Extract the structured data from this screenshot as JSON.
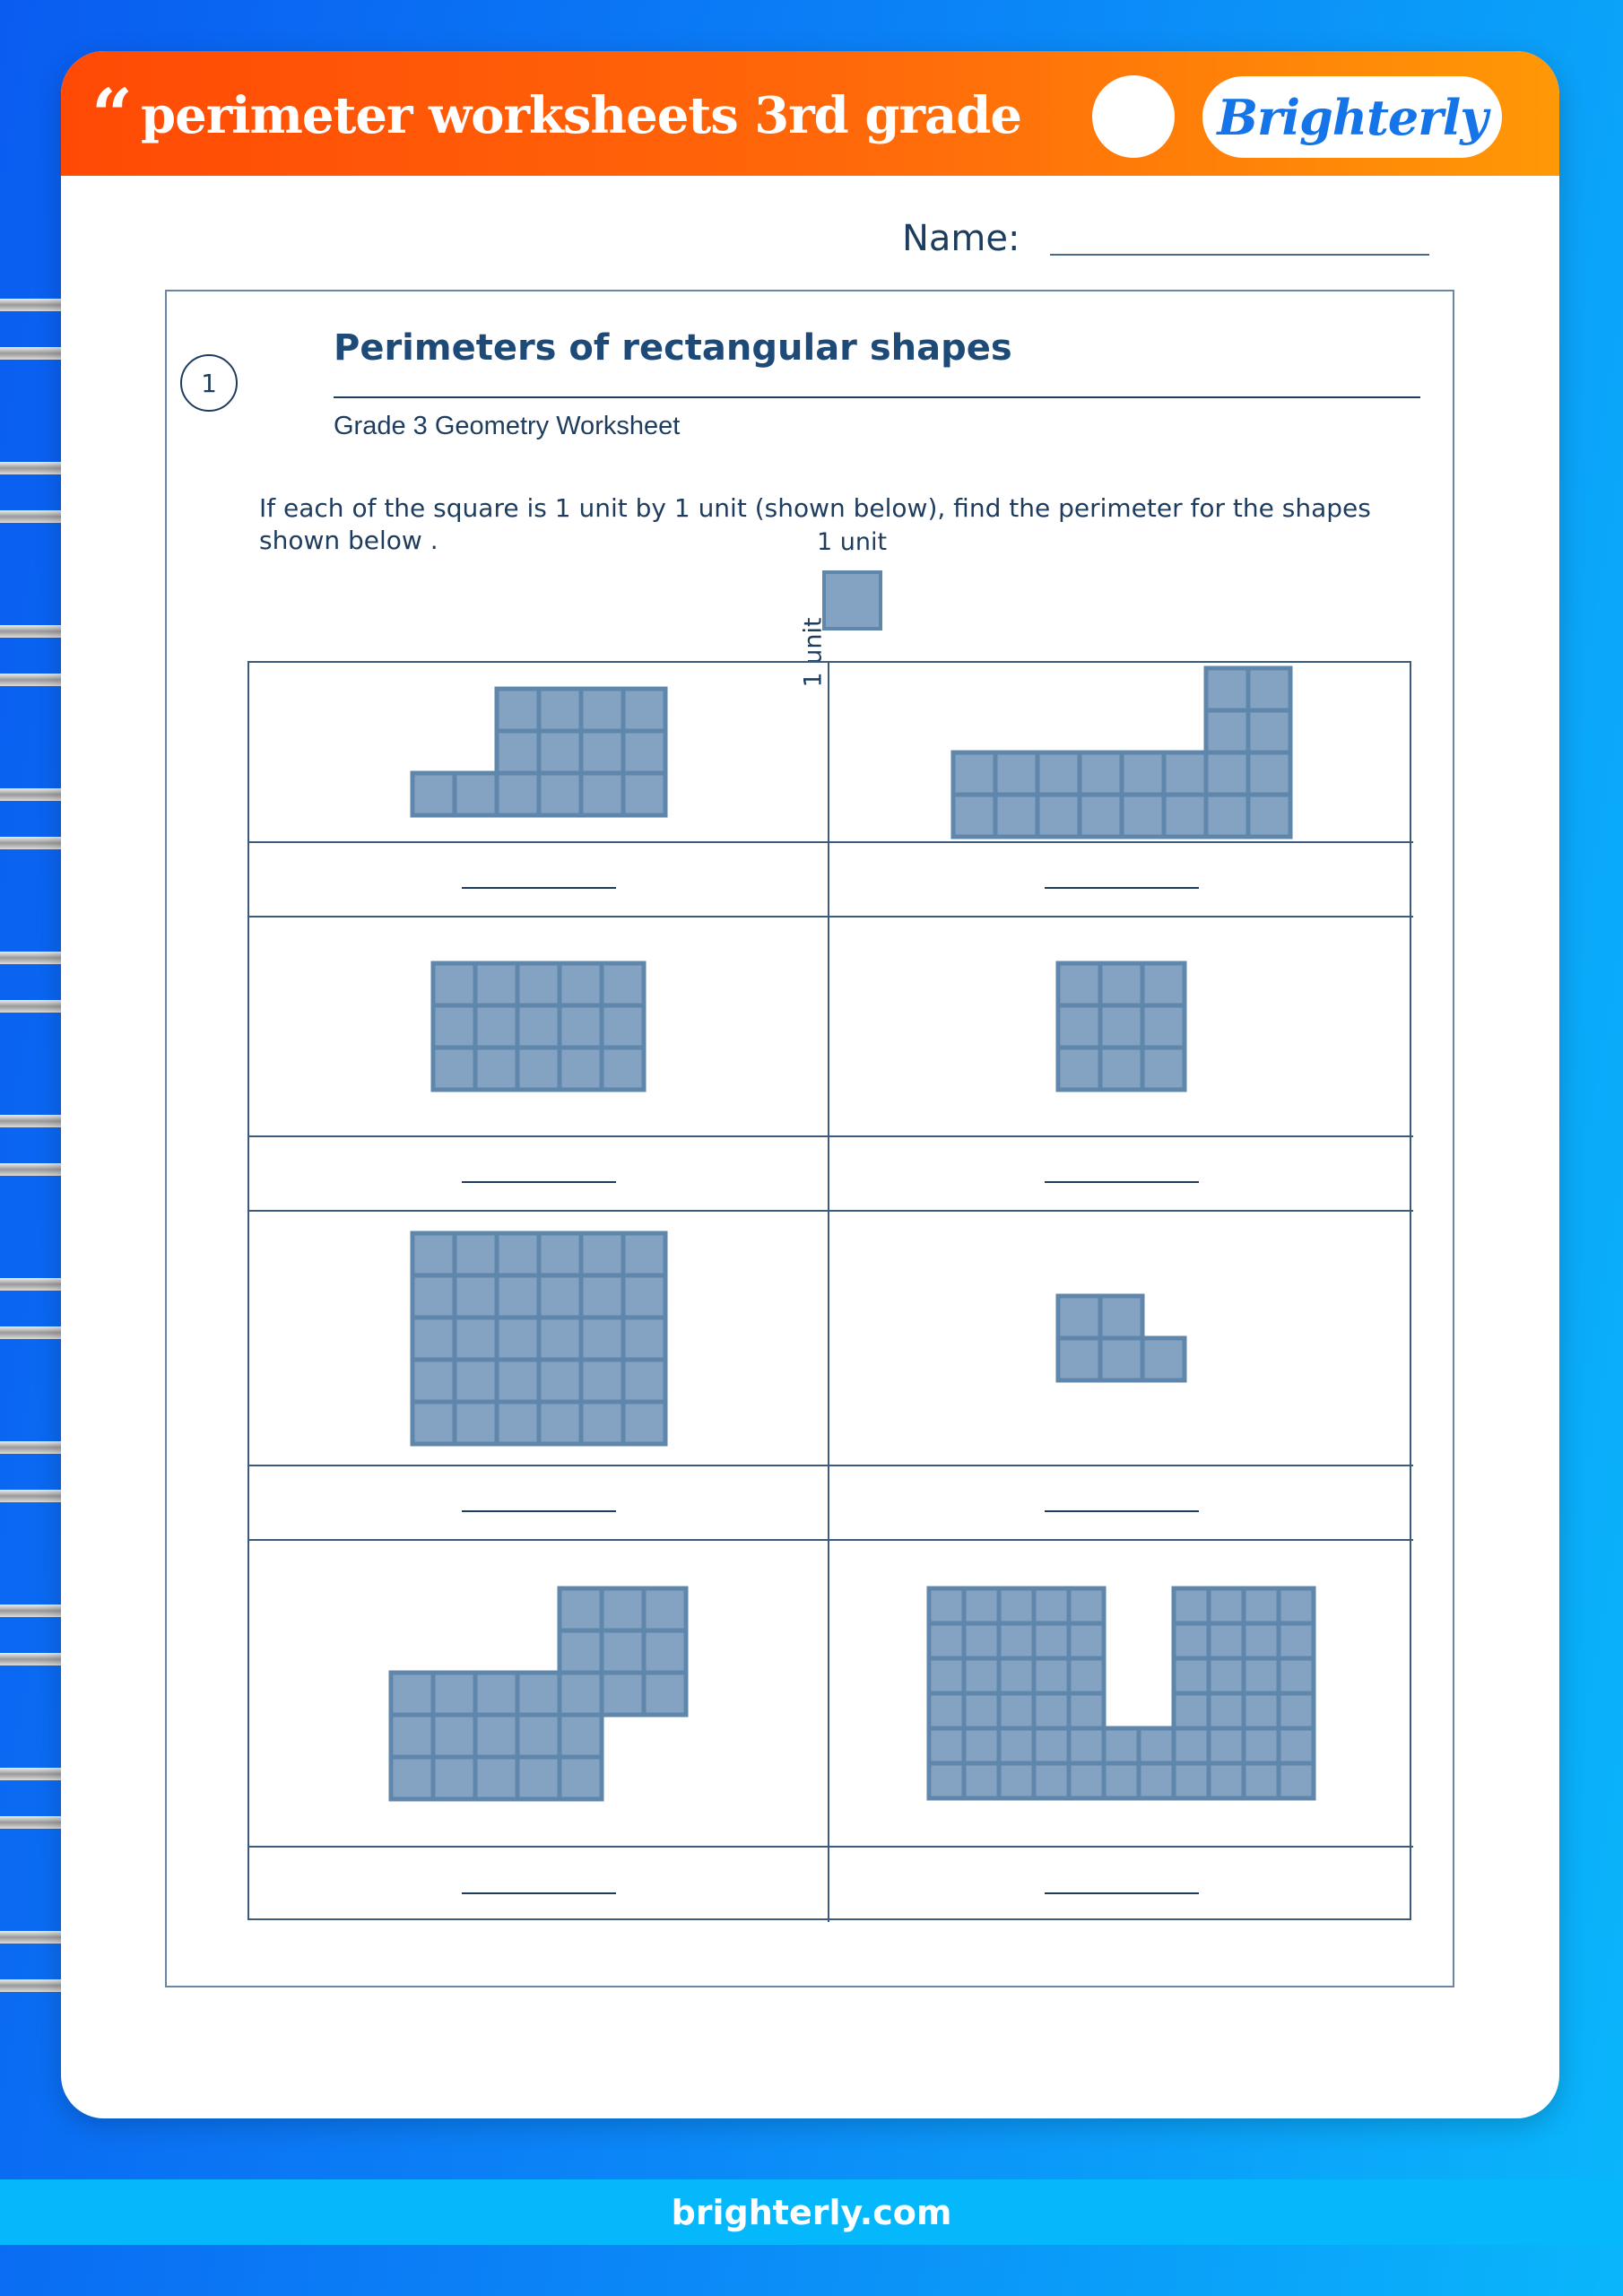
{
  "header": {
    "quote_mark": "“",
    "title": "perimeter worksheets 3rd grade",
    "logo_text": "Brighterly"
  },
  "name_label": "Name:",
  "section": {
    "number": "1",
    "title": "Perimeters of rectangular shapes",
    "subtitle": "Grade 3 Geometry Worksheet",
    "instructions": "If each of the square is 1 unit by 1 unit (shown below), find the perimeter for the shapes shown below .",
    "unit_label_top": "1 unit",
    "unit_label_side": "1 unit"
  },
  "colors": {
    "shape_fill": "#84a3c2",
    "shape_stroke": "#5f86ab",
    "header_start": "#ff4a05",
    "header_end": "#ff9806",
    "text": "#1e3c5e"
  },
  "shapes": [
    {
      "rows": [
        "..####",
        "..####",
        "######"
      ]
    },
    {
      "rows": [
        "......##",
        "......##",
        "########",
        "########"
      ]
    },
    {
      "rows": [
        "#####",
        "#####",
        "#####"
      ]
    },
    {
      "rows": [
        "###",
        "###",
        "###"
      ]
    },
    {
      "rows": [
        "######",
        "######",
        "######",
        "######",
        "######"
      ]
    },
    {
      "rows": [
        "##.",
        "###"
      ]
    },
    {
      "rows": [
        "....###",
        "....###",
        "#######",
        "#####..",
        "#####.."
      ]
    },
    {
      "rows": [
        "#####..####",
        "#####..####",
        "#####..####",
        "#####..####",
        "###########",
        "###########"
      ]
    }
  ],
  "footer": {
    "site": "brighterly.com"
  }
}
